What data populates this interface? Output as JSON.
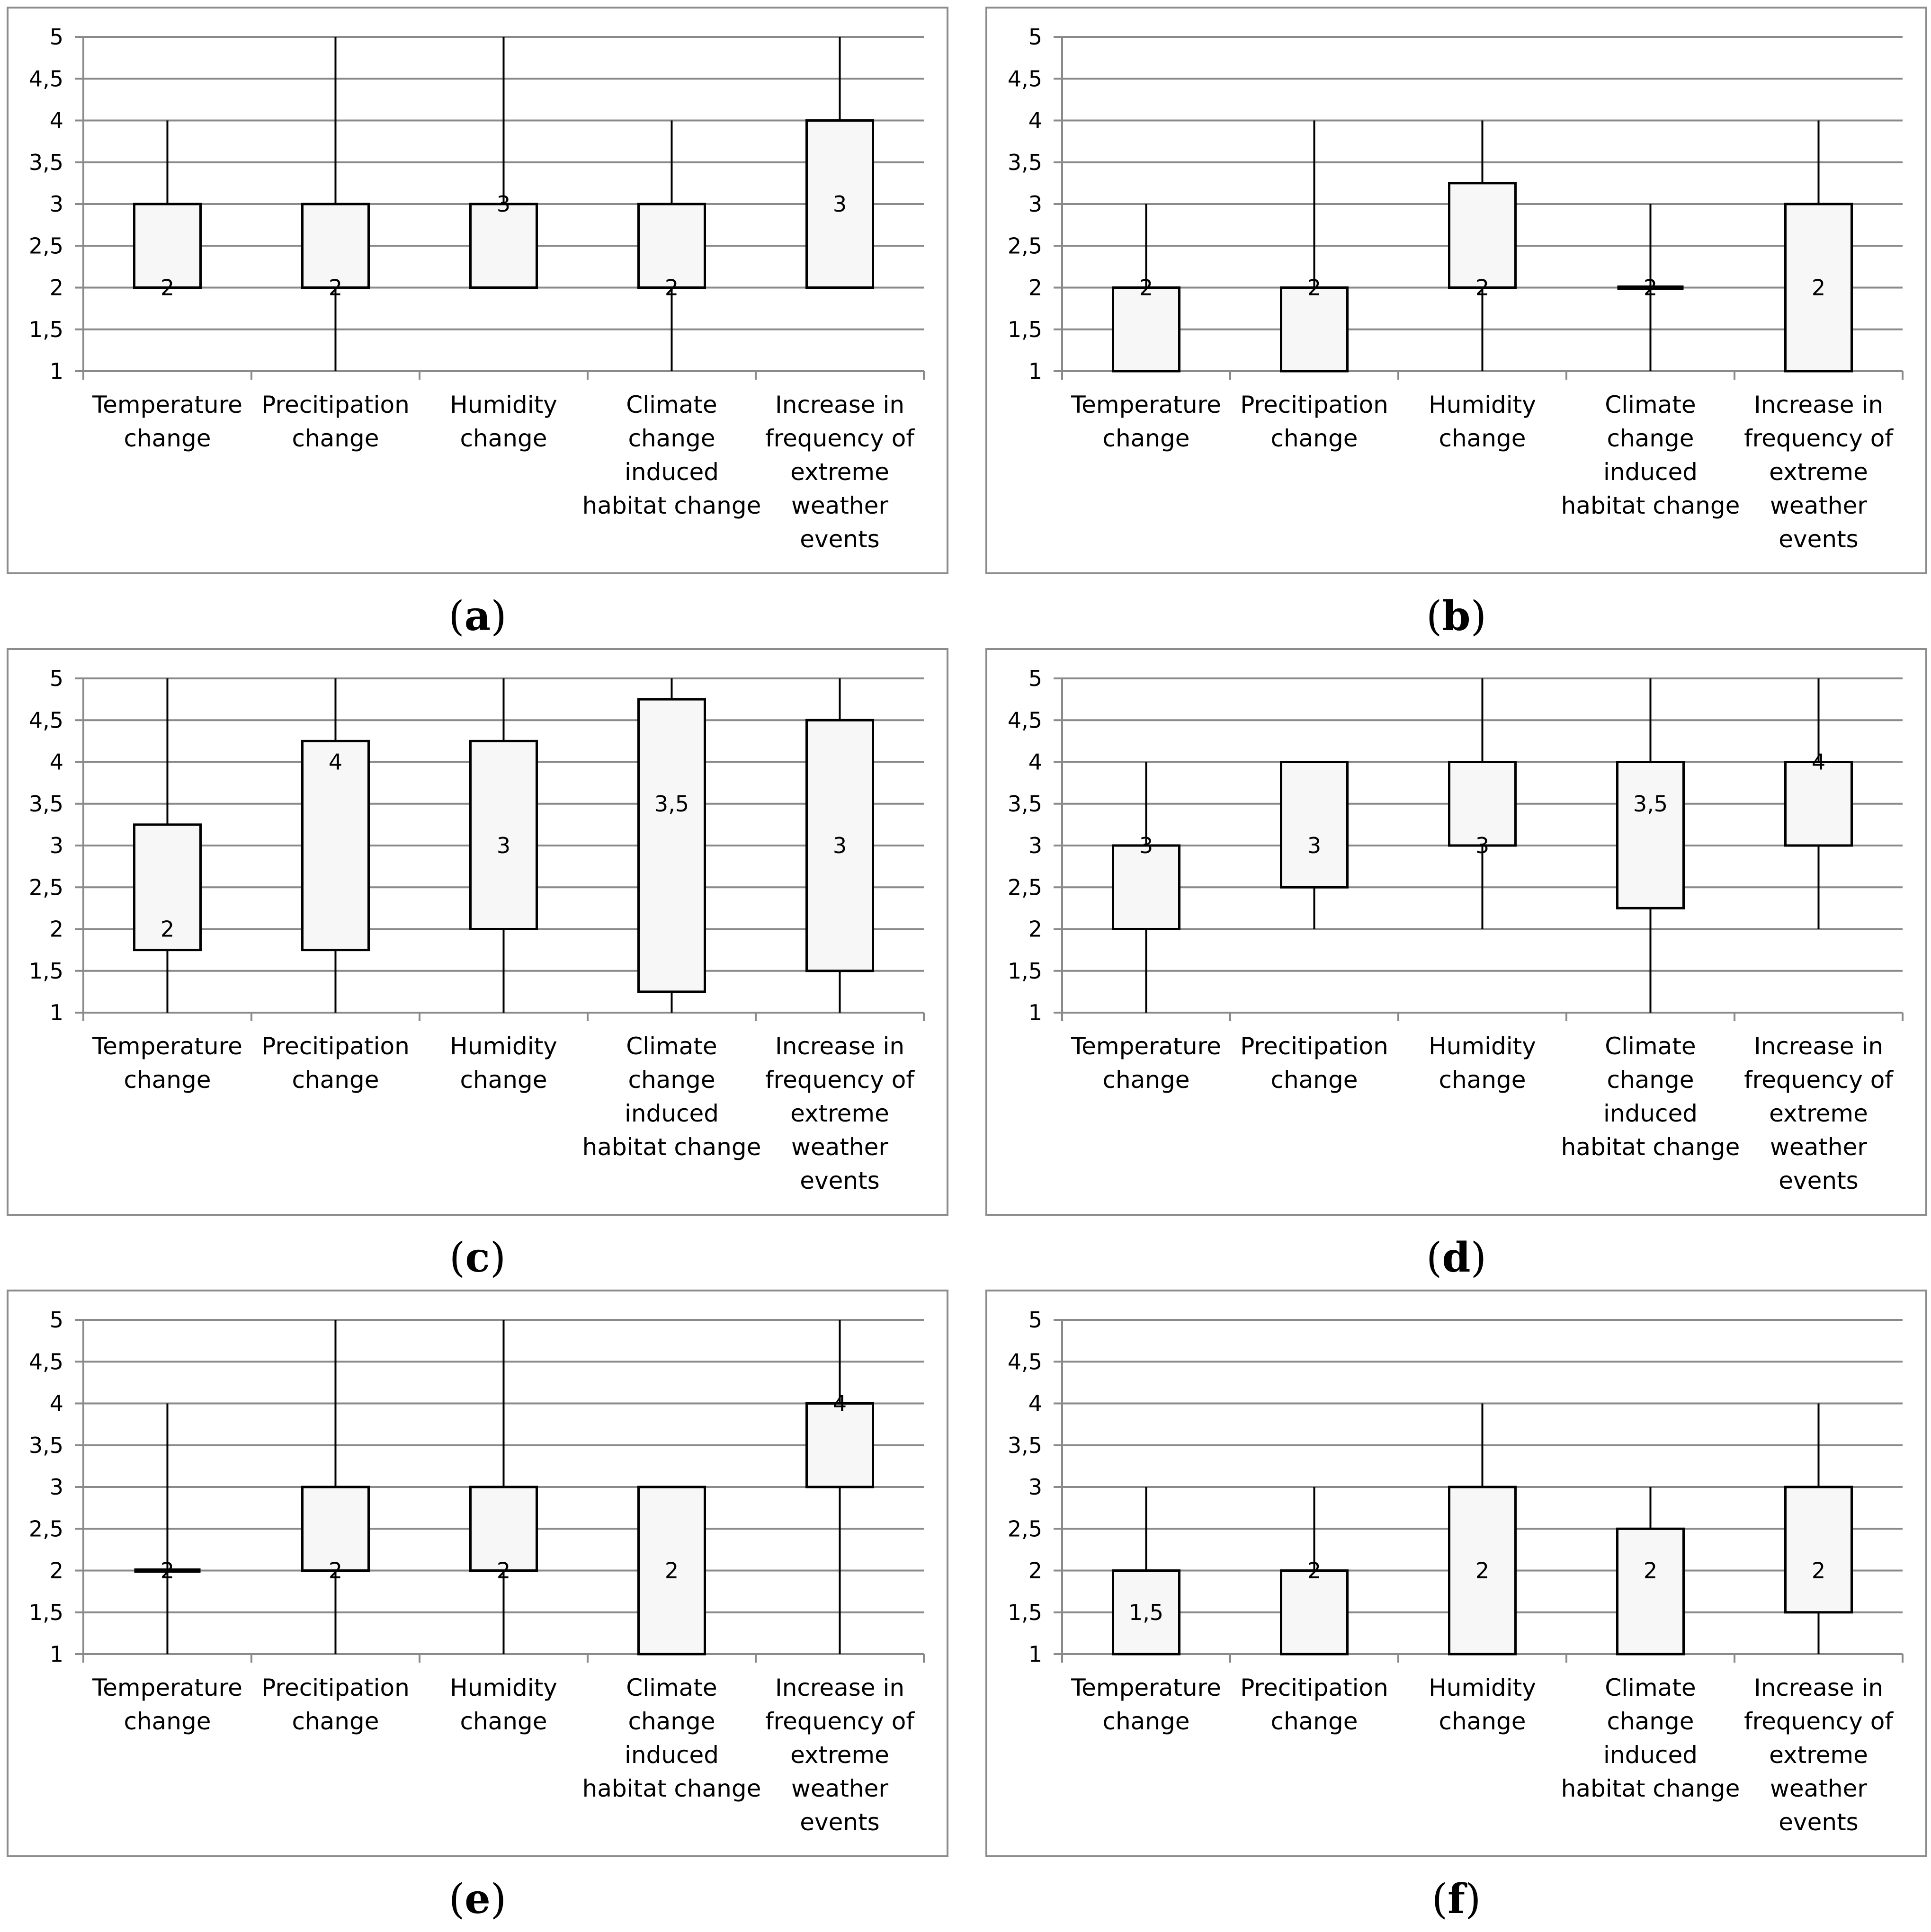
{
  "categories": [
    "Temperature change",
    "Precitipation change",
    "Humidity change",
    "Climate change induced habitat change",
    "Increase in frequency of extreme weather events"
  ],
  "chart_data": [
    {
      "type": "box",
      "panel": "a",
      "yticks": [
        "1",
        "1,5",
        "2",
        "2,5",
        "3",
        "3,5",
        "4",
        "4,5",
        "5"
      ],
      "ylim": [
        1,
        5
      ],
      "grid": true,
      "boxes": [
        {
          "min": 2,
          "q1": 2,
          "median": 2,
          "q3": 3,
          "max": 4,
          "label": "2"
        },
        {
          "min": 1,
          "q1": 2,
          "median": 2,
          "q3": 3,
          "max": 5,
          "label": "2"
        },
        {
          "min": 2,
          "q1": 2,
          "median": 3,
          "q3": 3,
          "max": 5,
          "label": "3"
        },
        {
          "min": 1,
          "q1": 2,
          "median": 2,
          "q3": 3,
          "max": 4,
          "label": "2"
        },
        {
          "min": 2,
          "q1": 2,
          "median": 3,
          "q3": 4,
          "max": 5,
          "label": "3"
        }
      ]
    },
    {
      "type": "box",
      "panel": "b",
      "yticks": [
        "1",
        "1,5",
        "2",
        "2,5",
        "3",
        "3,5",
        "4",
        "4,5",
        "5"
      ],
      "ylim": [
        1,
        5
      ],
      "grid": true,
      "boxes": [
        {
          "min": 1,
          "q1": 1,
          "median": 2,
          "q3": 2,
          "max": 3,
          "label": "2"
        },
        {
          "min": 1,
          "q1": 1,
          "median": 2,
          "q3": 2,
          "max": 4,
          "label": "2"
        },
        {
          "min": 1,
          "q1": 2,
          "median": 2,
          "q3": 3.25,
          "max": 4,
          "label": "2"
        },
        {
          "min": 1,
          "q1": 2,
          "median": 2,
          "q3": 2,
          "max": 3,
          "label": "2"
        },
        {
          "min": 1,
          "q1": 1,
          "median": 2,
          "q3": 3,
          "max": 4,
          "label": "2"
        }
      ]
    },
    {
      "type": "box",
      "panel": "c",
      "yticks": [
        "1",
        "1,5",
        "2",
        "2,5",
        "3",
        "3,5",
        "4",
        "4,5",
        "5"
      ],
      "ylim": [
        1,
        5
      ],
      "grid": true,
      "boxes": [
        {
          "min": 1,
          "q1": 1.75,
          "median": 2,
          "q3": 3.25,
          "max": 5,
          "label": "2"
        },
        {
          "min": 1,
          "q1": 1.75,
          "median": 4,
          "q3": 4.25,
          "max": 5,
          "label": "4"
        },
        {
          "min": 1,
          "q1": 2,
          "median": 3,
          "q3": 4.25,
          "max": 5,
          "label": "3"
        },
        {
          "min": 1,
          "q1": 1.25,
          "median": 3.5,
          "q3": 4.75,
          "max": 5,
          "label": "3,5"
        },
        {
          "min": 1,
          "q1": 1.5,
          "median": 3,
          "q3": 4.5,
          "max": 5,
          "label": "3"
        }
      ]
    },
    {
      "type": "box",
      "panel": "d",
      "yticks": [
        "1",
        "1,5",
        "2",
        "2,5",
        "3",
        "3,5",
        "4",
        "4,5",
        "5"
      ],
      "ylim": [
        1,
        5
      ],
      "grid": true,
      "boxes": [
        {
          "min": 1,
          "q1": 2,
          "median": 3,
          "q3": 3,
          "max": 4,
          "label": "3"
        },
        {
          "min": 2,
          "q1": 2.5,
          "median": 3,
          "q3": 4,
          "max": 4,
          "label": "3"
        },
        {
          "min": 2,
          "q1": 3,
          "median": 3,
          "q3": 4,
          "max": 5,
          "label": "3"
        },
        {
          "min": 1,
          "q1": 2.25,
          "median": 3.5,
          "q3": 4,
          "max": 5,
          "label": "3,5"
        },
        {
          "min": 2,
          "q1": 3,
          "median": 4,
          "q3": 4,
          "max": 5,
          "label": "4"
        }
      ]
    },
    {
      "type": "box",
      "panel": "e",
      "yticks": [
        "1",
        "1,5",
        "2",
        "2,5",
        "3",
        "3,5",
        "4",
        "4,5",
        "5"
      ],
      "ylim": [
        1,
        5
      ],
      "grid": true,
      "boxes": [
        {
          "min": 1,
          "q1": 2,
          "median": 2,
          "q3": 2,
          "max": 4,
          "label": "2"
        },
        {
          "min": 1,
          "q1": 2,
          "median": 2,
          "q3": 3,
          "max": 5,
          "label": "2"
        },
        {
          "min": 1,
          "q1": 2,
          "median": 2,
          "q3": 3,
          "max": 5,
          "label": "2"
        },
        {
          "min": 1,
          "q1": 1,
          "median": 2,
          "q3": 3,
          "max": 3,
          "label": "2"
        },
        {
          "min": 1,
          "q1": 3,
          "median": 4,
          "q3": 4,
          "max": 5,
          "label": "4"
        }
      ]
    },
    {
      "type": "box",
      "panel": "f",
      "yticks": [
        "1",
        "1,5",
        "2",
        "2,5",
        "3",
        "3,5",
        "4",
        "4,5",
        "5"
      ],
      "ylim": [
        1,
        5
      ],
      "grid": true,
      "boxes": [
        {
          "min": 1,
          "q1": 1,
          "median": 1.5,
          "q3": 2,
          "max": 3,
          "label": "1,5"
        },
        {
          "min": 1,
          "q1": 1,
          "median": 2,
          "q3": 2,
          "max": 3,
          "label": "2"
        },
        {
          "min": 1,
          "q1": 1,
          "median": 2,
          "q3": 3,
          "max": 4,
          "label": "2"
        },
        {
          "min": 1,
          "q1": 1,
          "median": 2,
          "q3": 2.5,
          "max": 3,
          "label": "2"
        },
        {
          "min": 1,
          "q1": 1.5,
          "median": 2,
          "q3": 3,
          "max": 4,
          "label": "2"
        }
      ]
    }
  ]
}
